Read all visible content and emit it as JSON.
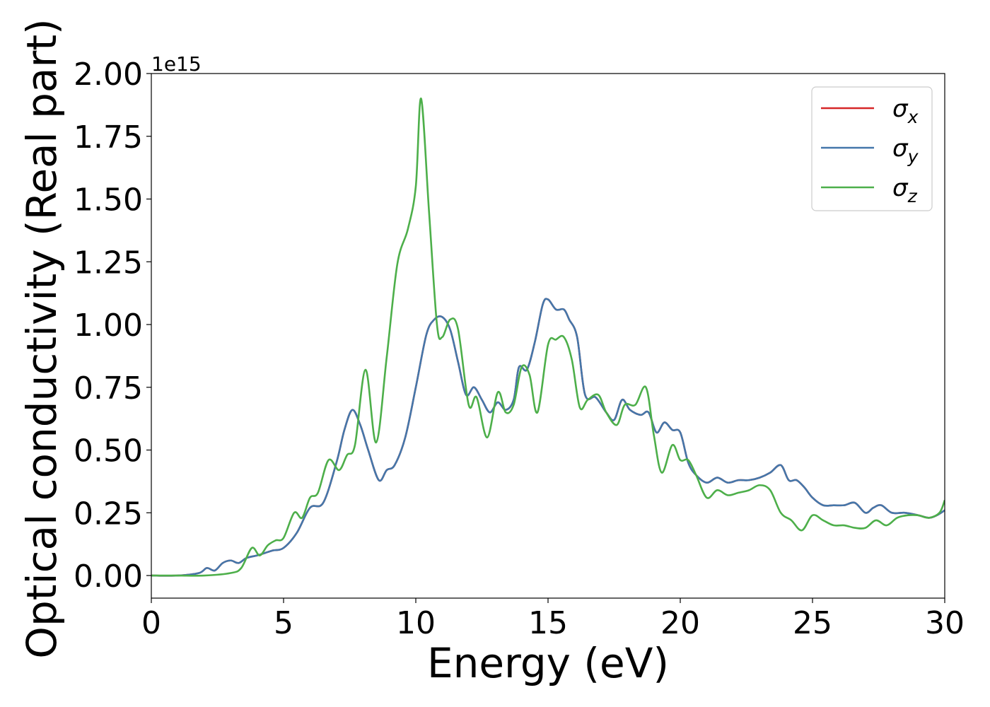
{
  "chart_data": {
    "type": "line",
    "title": "",
    "xlabel": "Energy (eV)",
    "ylabel": "Optical conductivity (Real part)",
    "y_offset_label": "1e15",
    "xlim": [
      0,
      30
    ],
    "ylim": [
      -0.09,
      2.0
    ],
    "x_ticks": [
      0,
      5,
      10,
      15,
      20,
      25,
      30
    ],
    "x_tick_labels": [
      "0",
      "5",
      "10",
      "15",
      "20",
      "25",
      "30"
    ],
    "y_ticks": [
      0.0,
      0.25,
      0.5,
      0.75,
      1.0,
      1.25,
      1.5,
      1.75,
      2.0
    ],
    "y_tick_labels": [
      "0.00",
      "0.25",
      "0.50",
      "0.75",
      "1.00",
      "1.25",
      "1.50",
      "1.75",
      "2.00"
    ],
    "grid": false,
    "legend_position": "top-right",
    "series": [
      {
        "name": "σx",
        "legend_base": "σ",
        "legend_sub": "x",
        "color": "#d62728",
        "x": [
          0,
          1,
          1.8,
          2.1,
          2.4,
          2.7,
          3.0,
          3.3,
          3.6,
          4.0,
          4.3,
          4.6,
          5.0,
          5.5,
          6.0,
          6.5,
          7.0,
          7.3,
          7.6,
          7.9,
          8.2,
          8.6,
          8.9,
          9.2,
          9.6,
          10.0,
          10.4,
          10.7,
          11.0,
          11.3,
          11.6,
          11.9,
          12.2,
          12.5,
          12.8,
          13.1,
          13.4,
          13.7,
          13.9,
          14.2,
          14.5,
          14.8,
          15.0,
          15.3,
          15.6,
          15.8,
          16.1,
          16.4,
          16.8,
          17.2,
          17.5,
          17.8,
          18.1,
          18.5,
          18.8,
          19.1,
          19.4,
          19.7,
          20.0,
          20.3,
          20.6,
          21.0,
          21.4,
          21.8,
          22.2,
          22.6,
          23.0,
          23.4,
          23.8,
          24.1,
          24.4,
          24.7,
          25.0,
          25.4,
          25.8,
          26.2,
          26.6,
          27.0,
          27.3,
          27.6,
          28.0,
          28.5,
          29.0,
          29.4,
          29.7,
          30.0
        ],
        "y": [
          0.0,
          0.0,
          0.01,
          0.03,
          0.02,
          0.05,
          0.06,
          0.05,
          0.07,
          0.08,
          0.09,
          0.1,
          0.11,
          0.17,
          0.27,
          0.29,
          0.45,
          0.58,
          0.66,
          0.6,
          0.5,
          0.38,
          0.42,
          0.44,
          0.55,
          0.75,
          0.96,
          1.02,
          1.03,
          0.98,
          0.85,
          0.72,
          0.75,
          0.7,
          0.65,
          0.69,
          0.66,
          0.7,
          0.83,
          0.82,
          0.93,
          1.08,
          1.1,
          1.06,
          1.06,
          1.02,
          0.95,
          0.72,
          0.71,
          0.65,
          0.62,
          0.7,
          0.66,
          0.64,
          0.65,
          0.57,
          0.61,
          0.58,
          0.57,
          0.45,
          0.4,
          0.37,
          0.39,
          0.37,
          0.38,
          0.38,
          0.39,
          0.41,
          0.44,
          0.38,
          0.38,
          0.35,
          0.31,
          0.28,
          0.28,
          0.28,
          0.29,
          0.25,
          0.27,
          0.28,
          0.25,
          0.25,
          0.24,
          0.23,
          0.24,
          0.26
        ]
      },
      {
        "name": "σy",
        "legend_base": "σ",
        "legend_sub": "y",
        "color": "#4477aa",
        "x": [
          0,
          1,
          1.8,
          2.1,
          2.4,
          2.7,
          3.0,
          3.3,
          3.6,
          4.0,
          4.3,
          4.6,
          5.0,
          5.5,
          6.0,
          6.5,
          7.0,
          7.3,
          7.6,
          7.9,
          8.2,
          8.6,
          8.9,
          9.2,
          9.6,
          10.0,
          10.4,
          10.7,
          11.0,
          11.3,
          11.6,
          11.9,
          12.2,
          12.5,
          12.8,
          13.1,
          13.4,
          13.7,
          13.9,
          14.2,
          14.5,
          14.8,
          15.0,
          15.3,
          15.6,
          15.8,
          16.1,
          16.4,
          16.8,
          17.2,
          17.5,
          17.8,
          18.1,
          18.5,
          18.8,
          19.1,
          19.4,
          19.7,
          20.0,
          20.3,
          20.6,
          21.0,
          21.4,
          21.8,
          22.2,
          22.6,
          23.0,
          23.4,
          23.8,
          24.1,
          24.4,
          24.7,
          25.0,
          25.4,
          25.8,
          26.2,
          26.6,
          27.0,
          27.3,
          27.6,
          28.0,
          28.5,
          29.0,
          29.4,
          29.7,
          30.0
        ],
        "y": [
          0.0,
          0.0,
          0.01,
          0.03,
          0.02,
          0.05,
          0.06,
          0.05,
          0.07,
          0.08,
          0.09,
          0.1,
          0.11,
          0.17,
          0.27,
          0.29,
          0.45,
          0.58,
          0.66,
          0.6,
          0.5,
          0.38,
          0.42,
          0.44,
          0.55,
          0.75,
          0.96,
          1.02,
          1.03,
          0.98,
          0.85,
          0.72,
          0.75,
          0.7,
          0.65,
          0.69,
          0.66,
          0.7,
          0.83,
          0.82,
          0.93,
          1.08,
          1.1,
          1.06,
          1.06,
          1.02,
          0.95,
          0.72,
          0.71,
          0.65,
          0.62,
          0.7,
          0.66,
          0.64,
          0.65,
          0.57,
          0.61,
          0.58,
          0.57,
          0.45,
          0.4,
          0.37,
          0.39,
          0.37,
          0.38,
          0.38,
          0.39,
          0.41,
          0.44,
          0.38,
          0.38,
          0.35,
          0.31,
          0.28,
          0.28,
          0.28,
          0.29,
          0.25,
          0.27,
          0.28,
          0.25,
          0.25,
          0.24,
          0.23,
          0.24,
          0.26
        ]
      },
      {
        "name": "σz",
        "legend_base": "σ",
        "legend_sub": "z",
        "color": "#4daf4a",
        "x": [
          0,
          1,
          2,
          3.0,
          3.4,
          3.8,
          4.1,
          4.4,
          4.7,
          5.0,
          5.4,
          5.7,
          6.0,
          6.3,
          6.7,
          7.1,
          7.4,
          7.7,
          8.1,
          8.5,
          8.9,
          9.3,
          9.7,
          10.0,
          10.2,
          10.5,
          10.8,
          11.0,
          11.3,
          11.6,
          12.0,
          12.3,
          12.7,
          13.1,
          13.4,
          13.7,
          14.0,
          14.3,
          14.6,
          15.0,
          15.3,
          15.6,
          15.9,
          16.2,
          16.5,
          16.9,
          17.2,
          17.6,
          17.9,
          18.3,
          18.7,
          19.0,
          19.3,
          19.7,
          20.0,
          20.3,
          20.6,
          21.0,
          21.4,
          21.8,
          22.2,
          22.6,
          23.0,
          23.4,
          23.8,
          24.2,
          24.6,
          25.0,
          25.4,
          25.8,
          26.2,
          26.6,
          27.0,
          27.4,
          27.8,
          28.2,
          28.6,
          29.0,
          29.4,
          29.8,
          30.0
        ],
        "y": [
          0.0,
          0.0,
          0.0,
          0.01,
          0.03,
          0.11,
          0.08,
          0.12,
          0.14,
          0.15,
          0.25,
          0.23,
          0.31,
          0.33,
          0.46,
          0.42,
          0.48,
          0.52,
          0.82,
          0.53,
          0.87,
          1.24,
          1.38,
          1.55,
          1.9,
          1.45,
          1.0,
          0.95,
          1.02,
          0.98,
          0.68,
          0.71,
          0.55,
          0.73,
          0.65,
          0.68,
          0.83,
          0.8,
          0.65,
          0.92,
          0.94,
          0.95,
          0.86,
          0.67,
          0.7,
          0.72,
          0.65,
          0.6,
          0.68,
          0.68,
          0.75,
          0.56,
          0.41,
          0.52,
          0.46,
          0.46,
          0.4,
          0.31,
          0.34,
          0.32,
          0.33,
          0.34,
          0.36,
          0.34,
          0.25,
          0.22,
          0.18,
          0.24,
          0.22,
          0.2,
          0.2,
          0.19,
          0.19,
          0.22,
          0.2,
          0.23,
          0.24,
          0.24,
          0.23,
          0.25,
          0.3
        ]
      }
    ]
  }
}
